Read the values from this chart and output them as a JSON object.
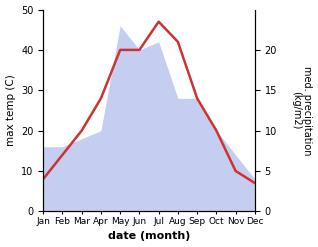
{
  "months": [
    "Jan",
    "Feb",
    "Mar",
    "Apr",
    "May",
    "Jun",
    "Jul",
    "Aug",
    "Sep",
    "Oct",
    "Nov",
    "Dec"
  ],
  "x_positions": [
    0,
    1,
    2,
    3,
    4,
    5,
    6,
    7,
    8,
    9,
    10,
    11
  ],
  "temperature": [
    8,
    14,
    20,
    28,
    40,
    40,
    47,
    42,
    28,
    20,
    10,
    7
  ],
  "precipitation": [
    8,
    8,
    9,
    10,
    23,
    20,
    21,
    14,
    14,
    10,
    7,
    4
  ],
  "temp_color": "#cc3333",
  "precip_fill_color": "#c5cef0",
  "ylabel_left": "max temp (C)",
  "ylabel_right": "med. precipitation\n(kg/m2)",
  "xlabel": "date (month)",
  "ylim_left": [
    0,
    50
  ],
  "ylim_right": [
    0,
    25
  ],
  "yticks_left": [
    0,
    10,
    20,
    30,
    40,
    50
  ],
  "yticks_right": [
    0,
    5,
    10,
    15,
    20
  ],
  "bg_color": "#ffffff"
}
